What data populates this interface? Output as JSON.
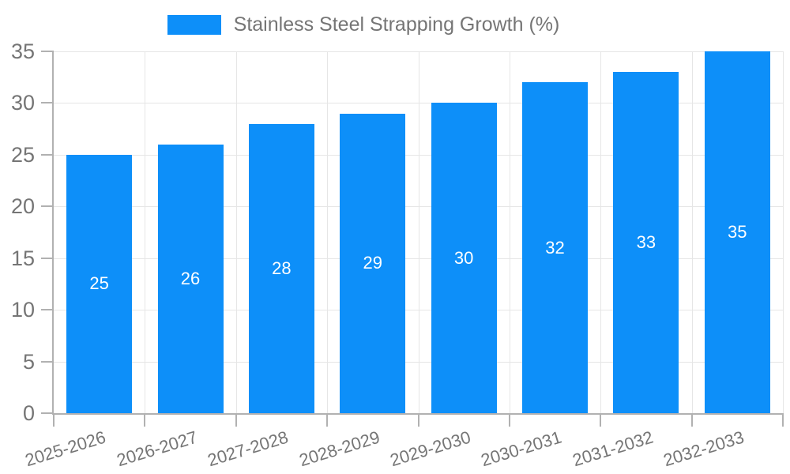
{
  "legend": {
    "label": "Stainless Steel Strapping Growth (%)"
  },
  "chart_data": {
    "type": "bar",
    "title": "",
    "series_name": "Stainless Steel Strapping Growth (%)",
    "categories": [
      "2025-2026",
      "2026-2027",
      "2027-2028",
      "2028-2029",
      "2029-2030",
      "2030-2031",
      "2031-2032",
      "2032-2033"
    ],
    "values": [
      25,
      26,
      28,
      29,
      30,
      32,
      33,
      35
    ],
    "bar_labels": [
      "25",
      "26",
      "28",
      "29",
      "30",
      "32",
      "33",
      "35"
    ],
    "xlabel": "",
    "ylabel": "",
    "ylim": [
      0,
      35
    ],
    "yticks": [
      0,
      5,
      10,
      15,
      20,
      25,
      30,
      35
    ],
    "ytick_labels": [
      "0",
      "5",
      "10",
      "15",
      "20",
      "25",
      "30",
      "35"
    ],
    "grid": true,
    "legend_position": "top",
    "colors": {
      "bar": "#0d8ff9",
      "axis": "#b1b1b1",
      "gridline": "#e6e6e6",
      "tick_text": "#757575",
      "bar_label_text": "#ffffff",
      "background": "#ffffff"
    }
  }
}
